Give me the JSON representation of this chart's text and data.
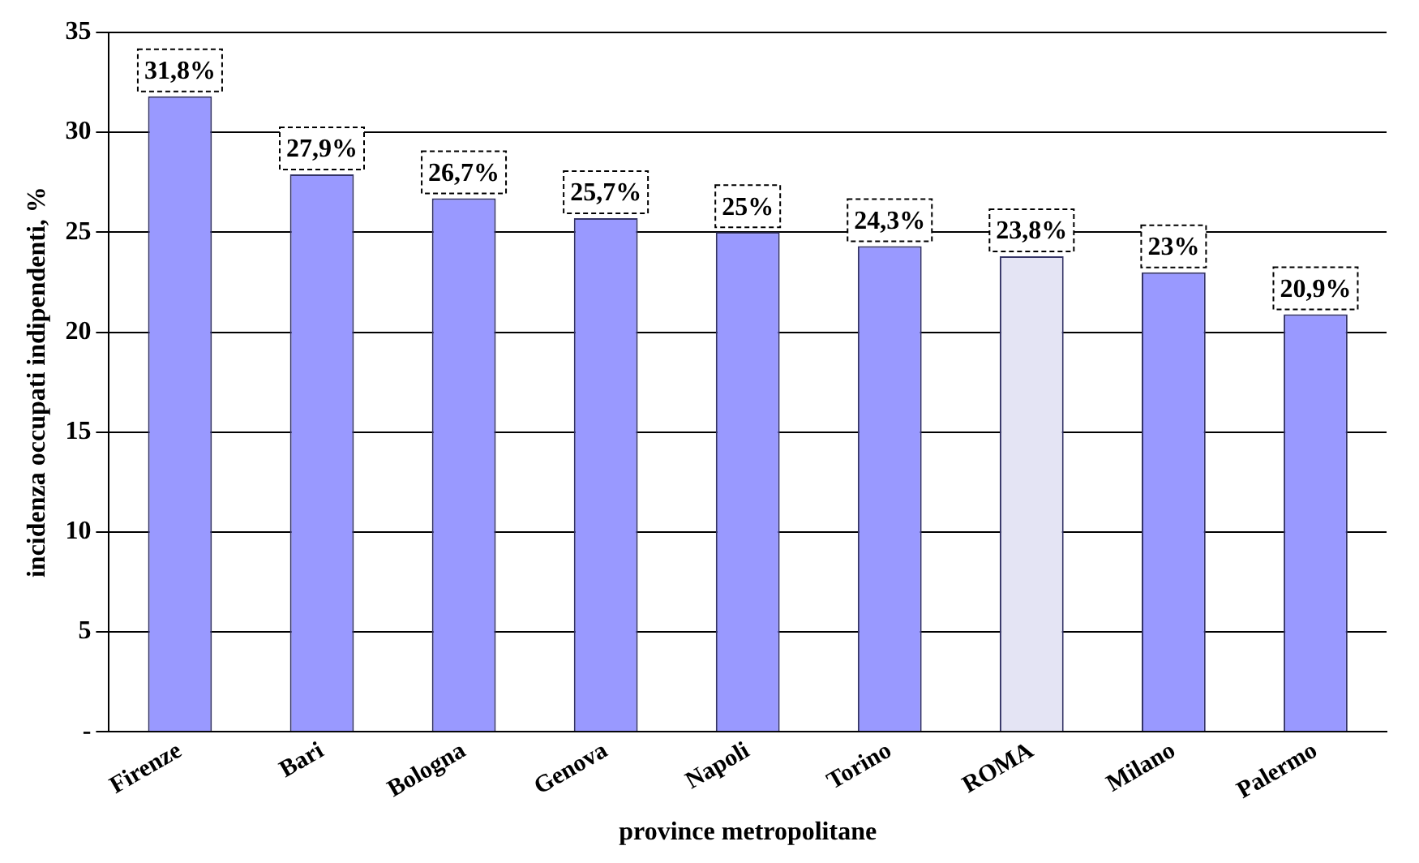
{
  "chart_data": {
    "type": "bar",
    "xlabel": "province metropolitane",
    "ylabel": "incidenza occupati indipendenti, %",
    "categories": [
      "Firenze",
      "Bari",
      "Bologna",
      "Genova",
      "Napoli",
      "Torino",
      "ROMA",
      "Milano",
      "Palermo"
    ],
    "values": [
      31.8,
      27.9,
      26.7,
      25.7,
      25,
      24.3,
      23.8,
      23,
      20.9
    ],
    "colors": [
      "#9999ff",
      "#9999ff",
      "#9999ff",
      "#9999ff",
      "#9999ff",
      "#9999ff",
      "#e4e4f4",
      "#9999ff",
      "#9999ff"
    ],
    "value_labels": [
      "31,8%",
      "27,9%",
      "26,7%",
      "25,7%",
      "25%",
      "24,3%",
      "23,8%",
      "23%",
      "20,9%"
    ],
    "ylim": [
      0,
      35
    ],
    "yticks": [
      {
        "value": 0,
        "label": "-"
      },
      5,
      10,
      15,
      20,
      25,
      30,
      35
    ],
    "grid": "y",
    "legend": false
  }
}
